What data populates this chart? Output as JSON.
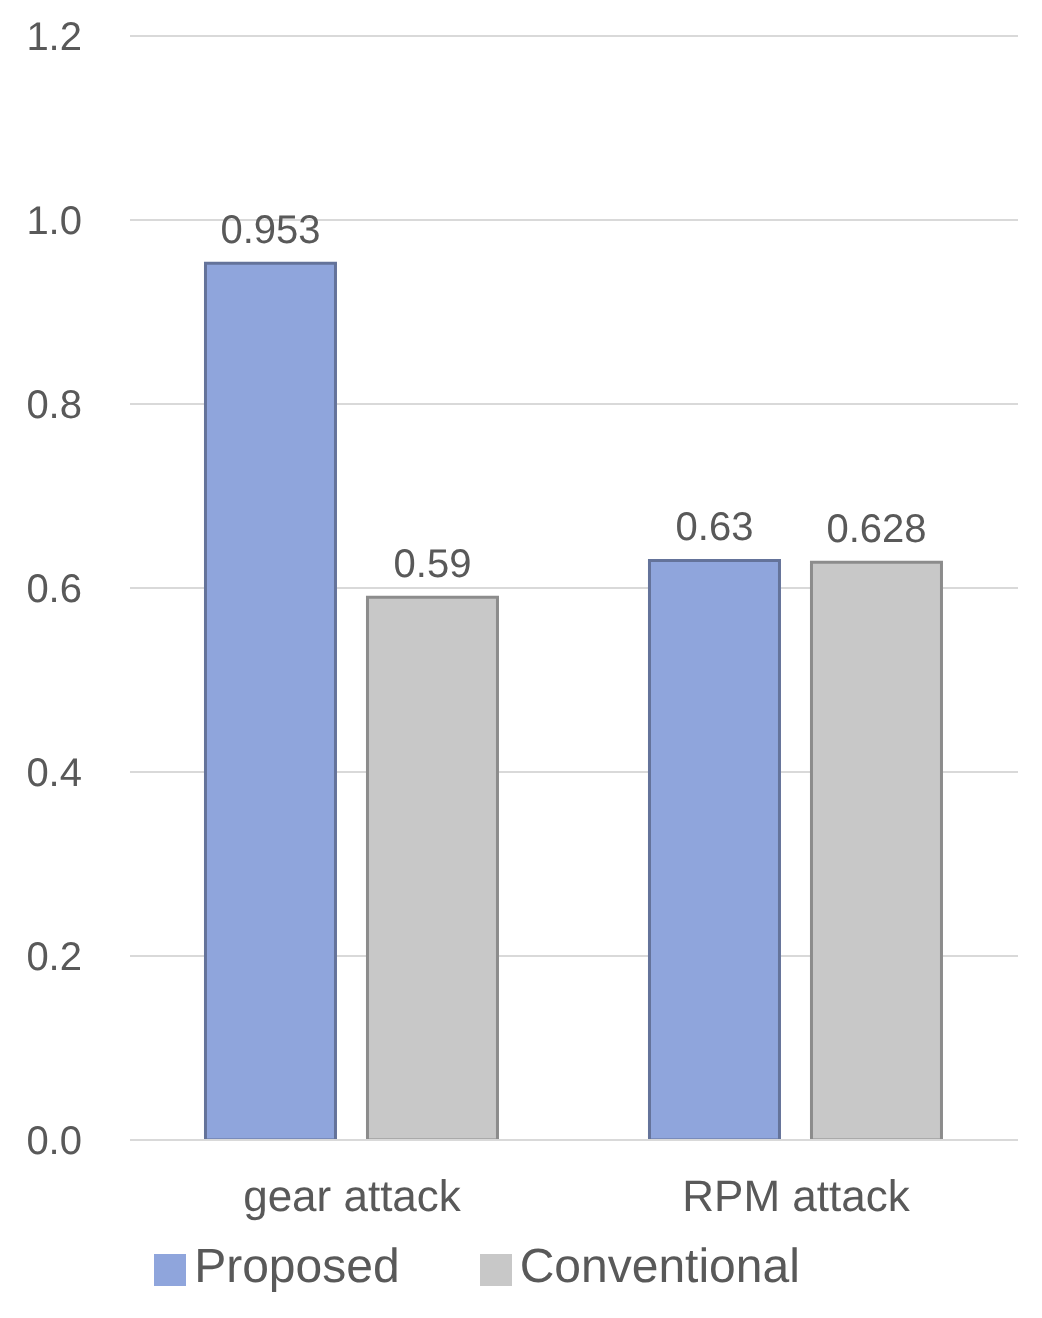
{
  "chart_data": {
    "type": "bar",
    "categories": [
      "gear attack",
      "RPM attack"
    ],
    "series": [
      {
        "name": "Proposed",
        "color": "#8fa5dc",
        "values": [
          0.953,
          0.63
        ]
      },
      {
        "name": "Conventional",
        "color": "#c8c8c8",
        "values": [
          0.59,
          0.628
        ]
      }
    ],
    "ylim": [
      0,
      1.2
    ],
    "yticks": [
      {
        "value": 0,
        "label": "0.0"
      },
      {
        "value": 0.2,
        "label": "0.2"
      },
      {
        "value": 0.4,
        "label": "0.4"
      },
      {
        "value": 0.6,
        "label": "0.6"
      },
      {
        "value": 0.8,
        "label": "0.8"
      },
      {
        "value": 1,
        "label": "1.0"
      },
      {
        "value": 1.2,
        "label": "1.2"
      }
    ],
    "grid": "y",
    "legend": "bottom",
    "data_labels": true
  }
}
